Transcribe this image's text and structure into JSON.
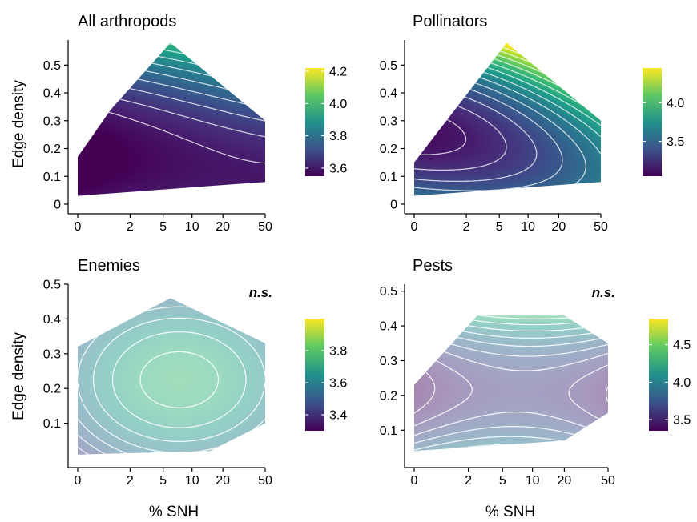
{
  "figure": {
    "shared_x_label": "% SNH",
    "shared_y_label": "Edge density"
  },
  "chart_data": [
    {
      "type": "heatmap",
      "title": "All arthropods",
      "annotation": "",
      "xlabel": "",
      "ylabel": "Edge density",
      "x_ticks": [
        "0",
        "2",
        "5",
        "10",
        "20",
        "50"
      ],
      "x_tick_values": [
        0,
        2,
        5,
        10,
        20,
        50
      ],
      "y_ticks": [
        "0",
        "0.1",
        "0.2",
        "0.3",
        "0.4",
        "0.5"
      ],
      "y_tick_values": [
        0,
        0.1,
        0.2,
        0.3,
        0.4,
        0.5
      ],
      "ylim": [
        0,
        0.59
      ],
      "colorbar": {
        "ticks": [
          "4.2",
          "4.0",
          "3.8",
          "3.6"
        ],
        "tick_values": [
          4.2,
          4.0,
          3.8,
          3.6
        ],
        "range": [
          3.55,
          4.22
        ]
      },
      "hull": [
        [
          0,
          0.03
        ],
        [
          0,
          0.17
        ],
        [
          1,
          0.34
        ],
        [
          6,
          0.58
        ],
        [
          50,
          0.3
        ],
        [
          50,
          0.08
        ]
      ],
      "surface": {
        "base": 3.5,
        "terms": [
          0.14,
          0.18,
          0.18,
          -0.03,
          -0.06,
          0.2,
          0.02
        ]
      },
      "faded": false
    },
    {
      "type": "heatmap",
      "title": "Pollinators",
      "annotation": "",
      "xlabel": "",
      "ylabel": "",
      "x_ticks": [
        "0",
        "2",
        "5",
        "10",
        "20",
        "50"
      ],
      "x_tick_values": [
        0,
        2,
        5,
        10,
        20,
        50
      ],
      "y_ticks": [
        "0",
        "0.1",
        "0.2",
        "0.3",
        "0.4",
        "0.5"
      ],
      "y_tick_values": [
        0,
        0.1,
        0.2,
        0.3,
        0.4,
        0.5
      ],
      "ylim": [
        0,
        0.59
      ],
      "colorbar": {
        "ticks": [
          "4.0",
          "3.5"
        ],
        "tick_values": [
          4.0,
          3.5
        ],
        "range": [
          3.05,
          4.45
        ]
      },
      "hull": [
        [
          0,
          0.03
        ],
        [
          0,
          0.15
        ],
        [
          6,
          0.58
        ],
        [
          50,
          0.3
        ],
        [
          50,
          0.08
        ]
      ],
      "surface": {
        "base": 3.15,
        "terms": [
          0.55,
          -0.35,
          0.45,
          0.1,
          0.02,
          0.45,
          0.05
        ]
      },
      "faded": false
    },
    {
      "type": "heatmap",
      "title": "Enemies",
      "annotation": "n.s.",
      "xlabel": "% SNH",
      "ylabel": "Edge density",
      "x_ticks": [
        "0",
        "2",
        "5",
        "10",
        "20",
        "50"
      ],
      "x_tick_values": [
        0,
        2,
        5,
        10,
        20,
        50
      ],
      "y_ticks": [
        "0.1",
        "0.2",
        "0.3",
        "0.4",
        "0.5"
      ],
      "y_tick_values": [
        0.1,
        0.2,
        0.3,
        0.4,
        0.5
      ],
      "ylim": [
        0,
        0.5
      ],
      "colorbar": {
        "ticks": [
          "3.8",
          "3.6",
          "3.4"
        ],
        "tick_values": [
          3.8,
          3.6,
          3.4
        ],
        "range": [
          3.3,
          4.0
        ]
      },
      "hull": [
        [
          0,
          0.01
        ],
        [
          0,
          0.32
        ],
        [
          6,
          0.46
        ],
        [
          50,
          0.33
        ],
        [
          50,
          0.1
        ],
        [
          15,
          0.02
        ]
      ],
      "surface": {
        "base": 3.75,
        "terms": [
          -0.25,
          0.0,
          0.0,
          -0.15,
          0.0,
          0.0,
          0.05
        ]
      },
      "faded": true
    },
    {
      "type": "heatmap",
      "title": "Pests",
      "annotation": "n.s.",
      "xlabel": "% SNH",
      "ylabel": "",
      "x_ticks": [
        "0",
        "2",
        "5",
        "10",
        "20",
        "50"
      ],
      "x_tick_values": [
        0,
        2,
        5,
        10,
        20,
        50
      ],
      "y_ticks": [
        "0.1",
        "0.2",
        "0.3",
        "0.4",
        "0.5"
      ],
      "y_tick_values": [
        0.1,
        0.2,
        0.3,
        0.4,
        0.5
      ],
      "ylim": [
        0.02,
        0.52
      ],
      "colorbar": {
        "ticks": [
          "4.5",
          "4.0",
          "3.5"
        ],
        "tick_values": [
          4.5,
          4.0,
          3.5
        ],
        "range": [
          3.35,
          4.85
        ]
      },
      "hull": [
        [
          0,
          0.04
        ],
        [
          0,
          0.23
        ],
        [
          2.6,
          0.43
        ],
        [
          20,
          0.43
        ],
        [
          50,
          0.35
        ],
        [
          50,
          0.15
        ],
        [
          20,
          0.07
        ]
      ],
      "surface": {
        "base": 3.55,
        "terms": [
          1.0,
          0.0,
          0.3,
          -0.2,
          0.05,
          0.0,
          -0.05
        ]
      },
      "faded": true
    }
  ]
}
